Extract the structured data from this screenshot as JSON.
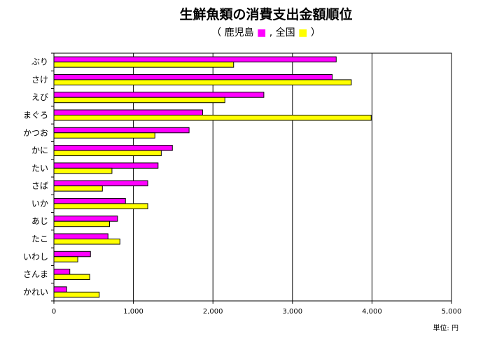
{
  "chart_data": {
    "type": "bar",
    "orientation": "horizontal",
    "title": "生鮮魚類の消費支出金額順位",
    "subtitle": {
      "open": "（",
      "series_a_label": "鹿児島",
      "separator": ", ",
      "series_b_label": "全国",
      "close": "）"
    },
    "unit": "単位: 円",
    "categories": [
      "ぶり",
      "さけ",
      "えび",
      "まぐろ",
      "かつお",
      "かに",
      "たい",
      "さば",
      "いか",
      "あじ",
      "たこ",
      "いわし",
      "さんま",
      "かれい"
    ],
    "series": [
      {
        "name": "鹿児島",
        "color": "#ff00ff",
        "values": [
          3550,
          3500,
          2640,
          1870,
          1700,
          1490,
          1310,
          1180,
          900,
          800,
          680,
          460,
          200,
          160
        ]
      },
      {
        "name": "全国",
        "color": "#ffff00",
        "values": [
          2260,
          3740,
          2150,
          3990,
          1270,
          1350,
          730,
          610,
          1180,
          700,
          830,
          300,
          450,
          570
        ]
      }
    ],
    "xlim": [
      0,
      5000
    ],
    "x_ticks": [
      "0",
      "1,000",
      "2,000",
      "3,000",
      "4,000",
      "5,000"
    ],
    "grid": true,
    "legend": "inline-in-subtitle"
  }
}
